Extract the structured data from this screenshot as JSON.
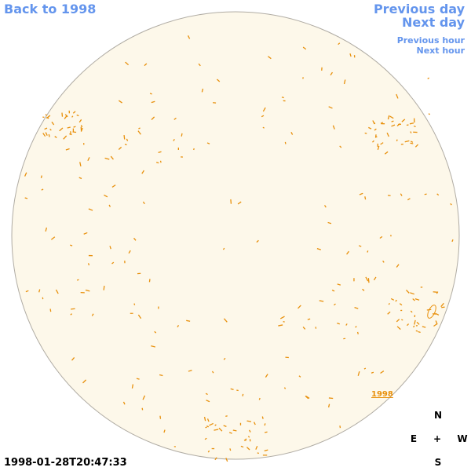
{
  "nav": {
    "back": "Back to 1998",
    "previous_day": "Previous day",
    "next_day": "Next day",
    "previous_hour": "Previous hour",
    "next_hour": "Next hour"
  },
  "region_label": "1998",
  "compass": {
    "north": "N",
    "east": "E",
    "center": "+",
    "west": "W",
    "south": "S"
  },
  "timestamp": "1998-01-28T20:47:33"
}
